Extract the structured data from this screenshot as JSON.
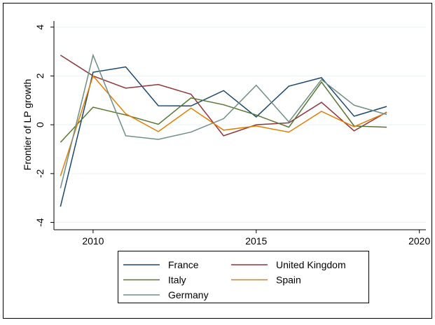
{
  "chart_data": {
    "type": "line",
    "ylabel": "Frontier of LP growth",
    "x": [
      2009,
      2010,
      2011,
      2012,
      2013,
      2014,
      2015,
      2016,
      2017,
      2018,
      2019
    ],
    "series": [
      {
        "name": "France",
        "color": "#1a476f",
        "values": [
          -3.35,
          2.15,
          2.37,
          0.78,
          0.77,
          1.4,
          0.32,
          1.58,
          1.93,
          0.35,
          0.75
        ]
      },
      {
        "name": "United Kingdom",
        "color": "#90353b",
        "values": [
          2.85,
          2.0,
          1.5,
          1.65,
          1.25,
          -0.45,
          0.0,
          0.08,
          0.92,
          -0.25,
          0.52
        ]
      },
      {
        "name": "Italy",
        "color": "#55752f",
        "values": [
          -0.72,
          0.72,
          0.4,
          0.02,
          1.1,
          0.82,
          0.4,
          -0.1,
          1.75,
          -0.05,
          -0.1
        ]
      },
      {
        "name": "Spain",
        "color": "#e37e00",
        "values": [
          -2.1,
          2.0,
          0.45,
          -0.28,
          0.68,
          -0.22,
          -0.05,
          -0.3,
          0.55,
          -0.08,
          0.5
        ]
      },
      {
        "name": "Germany",
        "color": "#6e8e84",
        "values": [
          -2.6,
          2.85,
          -0.45,
          -0.6,
          -0.3,
          0.25,
          1.62,
          0.12,
          1.85,
          0.8,
          0.42
        ]
      }
    ],
    "xlim": [
      2008.8,
      2020.2
    ],
    "xticks": [
      2010,
      2015,
      2020
    ],
    "ylim": [
      -4.3,
      4.25
    ],
    "yticks": [
      -4,
      -2,
      0,
      2,
      4
    ],
    "grid": true
  }
}
